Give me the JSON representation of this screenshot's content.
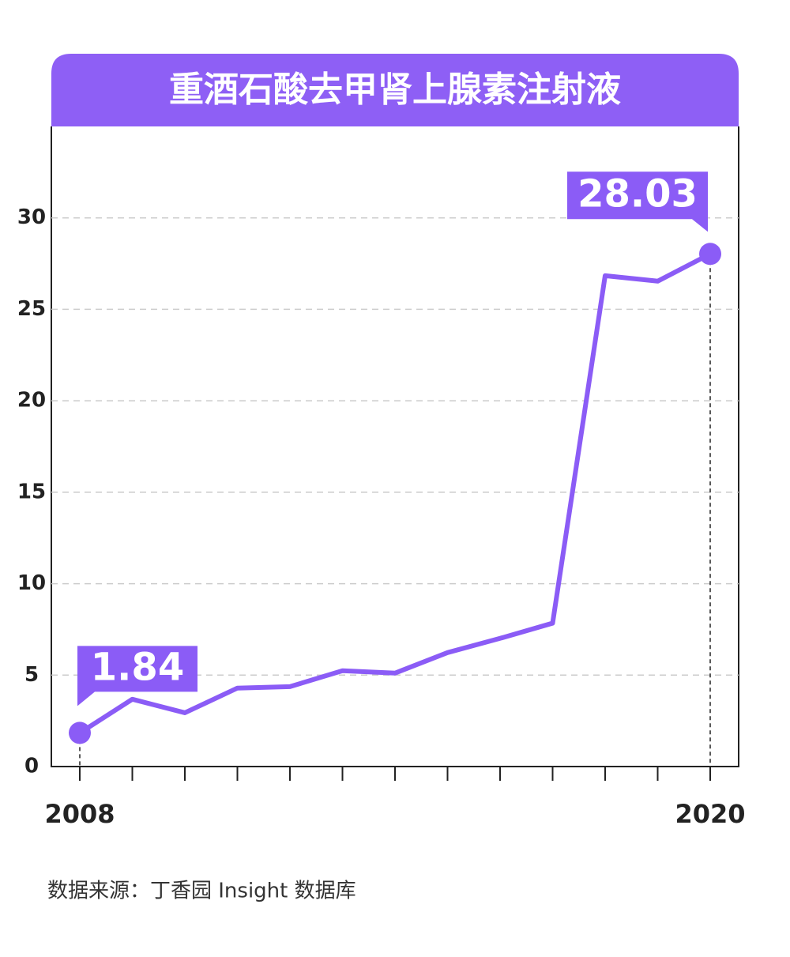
{
  "chart_data": {
    "type": "line",
    "title": "重酒石酸去甲肾上腺素注射液",
    "categories": [
      "2008",
      null,
      null,
      null,
      null,
      null,
      null,
      null,
      null,
      null,
      null,
      null,
      "2020"
    ],
    "series": [
      {
        "name": null,
        "color": "#8b5cf6",
        "values": [
          1.84,
          3.68,
          2.94,
          4.29,
          4.37,
          5.24,
          5.11,
          6.23,
          7.01,
          7.84,
          26.84,
          26.54,
          28.03
        ]
      }
    ],
    "ylim": [
      0,
      35
    ],
    "yticks": [
      0,
      5,
      10,
      15,
      20,
      25,
      30
    ],
    "grid": true,
    "source": "数据来源：丁香园 Insight 数据库"
  }
}
